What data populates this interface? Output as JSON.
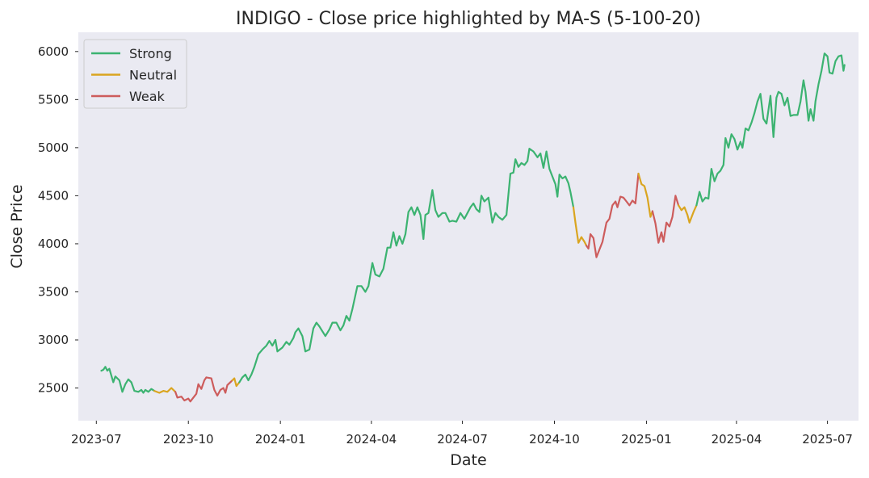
{
  "chart_data": {
    "type": "line",
    "title": "INDIGO - Close price highlighted by MA-S (5-100-20)",
    "xlabel": "Date",
    "ylabel": "Close Price",
    "grid": false,
    "legend_position": "top-left",
    "xlim": [
      "2023-06-13",
      "2025-08-01"
    ],
    "ylim": [
      2160,
      6200
    ],
    "x_ticks": [
      "2023-07-01",
      "2023-10-01",
      "2024-01-01",
      "2024-04-01",
      "2024-07-01",
      "2024-10-01",
      "2025-01-01",
      "2025-04-01",
      "2025-07-01"
    ],
    "x_tick_labels": [
      "2023-07",
      "2023-10",
      "2024-01",
      "2024-04",
      "2024-07",
      "2024-10",
      "2025-01",
      "2025-04",
      "2025-07"
    ],
    "y_ticks": [
      2500,
      3000,
      3500,
      4000,
      4500,
      5000,
      5500,
      6000
    ],
    "y_tick_labels": [
      "2500",
      "3000",
      "3500",
      "4000",
      "4500",
      "5000",
      "5500",
      "6000"
    ],
    "legend": [
      {
        "label": "Strong",
        "color": "#3cb371"
      },
      {
        "label": "Neutral",
        "color": "#daa520"
      },
      {
        "label": "Weak",
        "color": "#cd5c5c"
      }
    ],
    "segments": [
      {
        "state": "Strong",
        "points": [
          [
            "2023-07-06",
            2680
          ],
          [
            "2023-07-08",
            2690
          ],
          [
            "2023-07-10",
            2720
          ],
          [
            "2023-07-12",
            2680
          ],
          [
            "2023-07-14",
            2700
          ],
          [
            "2023-07-18",
            2560
          ],
          [
            "2023-07-20",
            2620
          ],
          [
            "2023-07-24",
            2580
          ],
          [
            "2023-07-27",
            2460
          ],
          [
            "2023-07-30",
            2540
          ],
          [
            "2023-08-02",
            2590
          ],
          [
            "2023-08-05",
            2560
          ],
          [
            "2023-08-08",
            2470
          ],
          [
            "2023-08-12",
            2460
          ],
          [
            "2023-08-15",
            2480
          ],
          [
            "2023-08-17",
            2450
          ],
          [
            "2023-08-19",
            2480
          ],
          [
            "2023-08-22",
            2460
          ],
          [
            "2023-08-25",
            2490
          ],
          [
            "2023-08-28",
            2470
          ]
        ]
      },
      {
        "state": "Neutral",
        "points": [
          [
            "2023-08-28",
            2470
          ],
          [
            "2023-09-02",
            2450
          ],
          [
            "2023-09-06",
            2470
          ],
          [
            "2023-09-10",
            2460
          ],
          [
            "2023-09-14",
            2500
          ],
          [
            "2023-09-16",
            2480
          ],
          [
            "2023-09-18",
            2460
          ]
        ]
      },
      {
        "state": "Weak",
        "points": [
          [
            "2023-09-18",
            2460
          ],
          [
            "2023-09-20",
            2400
          ],
          [
            "2023-09-24",
            2410
          ],
          [
            "2023-09-27",
            2370
          ],
          [
            "2023-10-01",
            2390
          ],
          [
            "2023-10-03",
            2360
          ],
          [
            "2023-10-06",
            2400
          ],
          [
            "2023-10-09",
            2440
          ],
          [
            "2023-10-11",
            2540
          ],
          [
            "2023-10-14",
            2490
          ],
          [
            "2023-10-17",
            2580
          ],
          [
            "2023-10-19",
            2610
          ],
          [
            "2023-10-24",
            2600
          ],
          [
            "2023-10-27",
            2480
          ],
          [
            "2023-10-30",
            2420
          ],
          [
            "2023-11-02",
            2480
          ],
          [
            "2023-11-05",
            2500
          ],
          [
            "2023-11-07",
            2450
          ],
          [
            "2023-11-09",
            2530
          ],
          [
            "2023-11-12",
            2560
          ],
          [
            "2023-11-14",
            2580
          ]
        ]
      },
      {
        "state": "Neutral",
        "points": [
          [
            "2023-11-14",
            2580
          ],
          [
            "2023-11-16",
            2600
          ],
          [
            "2023-11-18",
            2520
          ],
          [
            "2023-11-21",
            2560
          ]
        ]
      },
      {
        "state": "Strong",
        "points": [
          [
            "2023-11-21",
            2560
          ],
          [
            "2023-11-24",
            2610
          ],
          [
            "2023-11-27",
            2640
          ],
          [
            "2023-11-30",
            2580
          ],
          [
            "2023-12-03",
            2640
          ],
          [
            "2023-12-06",
            2720
          ],
          [
            "2023-12-10",
            2850
          ],
          [
            "2023-12-14",
            2900
          ],
          [
            "2023-12-18",
            2940
          ],
          [
            "2023-12-21",
            2990
          ],
          [
            "2023-12-24",
            2940
          ],
          [
            "2023-12-27",
            3000
          ],
          [
            "2023-12-29",
            2880
          ],
          [
            "2024-01-03",
            2920
          ],
          [
            "2024-01-07",
            2980
          ],
          [
            "2024-01-10",
            2950
          ],
          [
            "2024-01-14",
            3020
          ],
          [
            "2024-01-16",
            3080
          ],
          [
            "2024-01-19",
            3120
          ],
          [
            "2024-01-23",
            3040
          ],
          [
            "2024-01-26",
            2880
          ],
          [
            "2024-01-30",
            2900
          ],
          [
            "2024-02-03",
            3120
          ],
          [
            "2024-02-06",
            3180
          ],
          [
            "2024-02-09",
            3140
          ],
          [
            "2024-02-12",
            3090
          ],
          [
            "2024-02-15",
            3040
          ],
          [
            "2024-02-19",
            3110
          ],
          [
            "2024-02-22",
            3180
          ],
          [
            "2024-02-26",
            3180
          ],
          [
            "2024-03-01",
            3100
          ],
          [
            "2024-03-04",
            3150
          ],
          [
            "2024-03-07",
            3250
          ],
          [
            "2024-03-10",
            3200
          ],
          [
            "2024-03-13",
            3320
          ],
          [
            "2024-03-18",
            3560
          ],
          [
            "2024-03-22",
            3560
          ],
          [
            "2024-03-26",
            3500
          ],
          [
            "2024-03-29",
            3560
          ],
          [
            "2024-04-02",
            3800
          ],
          [
            "2024-04-05",
            3680
          ],
          [
            "2024-04-09",
            3660
          ],
          [
            "2024-04-13",
            3740
          ],
          [
            "2024-04-17",
            3960
          ],
          [
            "2024-04-20",
            3960
          ],
          [
            "2024-04-23",
            4120
          ],
          [
            "2024-04-26",
            3980
          ],
          [
            "2024-04-29",
            4080
          ],
          [
            "2024-05-02",
            4000
          ],
          [
            "2024-05-05",
            4100
          ],
          [
            "2024-05-08",
            4330
          ],
          [
            "2024-05-11",
            4380
          ],
          [
            "2024-05-14",
            4300
          ],
          [
            "2024-05-17",
            4380
          ],
          [
            "2024-05-20",
            4300
          ],
          [
            "2024-05-23",
            4050
          ],
          [
            "2024-05-25",
            4300
          ],
          [
            "2024-05-28",
            4320
          ],
          [
            "2024-06-01",
            4560
          ],
          [
            "2024-06-04",
            4350
          ],
          [
            "2024-06-07",
            4280
          ],
          [
            "2024-06-11",
            4320
          ],
          [
            "2024-06-14",
            4320
          ],
          [
            "2024-06-18",
            4230
          ],
          [
            "2024-06-21",
            4240
          ],
          [
            "2024-06-25",
            4230
          ],
          [
            "2024-06-29",
            4320
          ],
          [
            "2024-07-03",
            4260
          ],
          [
            "2024-07-06",
            4320
          ],
          [
            "2024-07-09",
            4380
          ],
          [
            "2024-07-12",
            4420
          ],
          [
            "2024-07-15",
            4360
          ],
          [
            "2024-07-18",
            4330
          ],
          [
            "2024-07-20",
            4500
          ],
          [
            "2024-07-23",
            4440
          ],
          [
            "2024-07-27",
            4480
          ],
          [
            "2024-07-31",
            4220
          ],
          [
            "2024-08-03",
            4320
          ],
          [
            "2024-08-06",
            4280
          ],
          [
            "2024-08-10",
            4250
          ],
          [
            "2024-08-14",
            4300
          ],
          [
            "2024-08-18",
            4730
          ],
          [
            "2024-08-21",
            4740
          ],
          [
            "2024-08-23",
            4880
          ],
          [
            "2024-08-26",
            4800
          ],
          [
            "2024-08-29",
            4840
          ],
          [
            "2024-09-01",
            4820
          ],
          [
            "2024-09-04",
            4860
          ],
          [
            "2024-09-06",
            4990
          ],
          [
            "2024-09-10",
            4960
          ],
          [
            "2024-09-14",
            4900
          ],
          [
            "2024-09-17",
            4940
          ],
          [
            "2024-09-20",
            4790
          ],
          [
            "2024-09-23",
            4960
          ],
          [
            "2024-09-26",
            4780
          ],
          [
            "2024-09-29",
            4700
          ],
          [
            "2024-10-02",
            4620
          ],
          [
            "2024-10-04",
            4490
          ],
          [
            "2024-10-06",
            4720
          ],
          [
            "2024-10-09",
            4680
          ],
          [
            "2024-10-12",
            4700
          ],
          [
            "2024-10-15",
            4630
          ],
          [
            "2024-10-17",
            4540
          ],
          [
            "2024-10-20",
            4380
          ]
        ]
      },
      {
        "state": "Neutral",
        "points": [
          [
            "2024-10-20",
            4380
          ],
          [
            "2024-10-22",
            4220
          ],
          [
            "2024-10-25",
            4010
          ],
          [
            "2024-10-28",
            4070
          ],
          [
            "2024-10-31",
            4020
          ],
          [
            "2024-11-02",
            3980
          ]
        ]
      },
      {
        "state": "Weak",
        "points": [
          [
            "2024-11-02",
            3980
          ],
          [
            "2024-11-04",
            3950
          ],
          [
            "2024-11-06",
            4100
          ],
          [
            "2024-11-09",
            4060
          ],
          [
            "2024-11-12",
            3860
          ],
          [
            "2024-11-15",
            3940
          ],
          [
            "2024-11-18",
            4020
          ],
          [
            "2024-11-22",
            4220
          ],
          [
            "2024-11-25",
            4260
          ],
          [
            "2024-11-28",
            4400
          ],
          [
            "2024-12-01",
            4440
          ],
          [
            "2024-12-03",
            4380
          ],
          [
            "2024-12-06",
            4490
          ],
          [
            "2024-12-09",
            4480
          ],
          [
            "2024-12-12",
            4440
          ],
          [
            "2024-12-15",
            4400
          ],
          [
            "2024-12-18",
            4450
          ],
          [
            "2024-12-21",
            4420
          ],
          [
            "2024-12-24",
            4730
          ]
        ]
      },
      {
        "state": "Neutral",
        "points": [
          [
            "2024-12-24",
            4730
          ],
          [
            "2024-12-27",
            4620
          ],
          [
            "2024-12-30",
            4600
          ],
          [
            "2025-01-02",
            4480
          ],
          [
            "2025-01-05",
            4280
          ],
          [
            "2025-01-07",
            4340
          ]
        ]
      },
      {
        "state": "Weak",
        "points": [
          [
            "2025-01-07",
            4340
          ],
          [
            "2025-01-10",
            4210
          ],
          [
            "2025-01-13",
            4010
          ],
          [
            "2025-01-16",
            4120
          ],
          [
            "2025-01-18",
            4020
          ],
          [
            "2025-01-21",
            4220
          ],
          [
            "2025-01-24",
            4180
          ],
          [
            "2025-01-27",
            4280
          ],
          [
            "2025-01-30",
            4500
          ],
          [
            "2025-02-02",
            4400
          ]
        ]
      },
      {
        "state": "Neutral",
        "points": [
          [
            "2025-02-02",
            4400
          ],
          [
            "2025-02-05",
            4350
          ],
          [
            "2025-02-08",
            4380
          ],
          [
            "2025-02-11",
            4300
          ],
          [
            "2025-02-13",
            4220
          ],
          [
            "2025-02-17",
            4330
          ],
          [
            "2025-02-20",
            4400
          ]
        ]
      },
      {
        "state": "Strong",
        "points": [
          [
            "2025-02-20",
            4400
          ],
          [
            "2025-02-23",
            4540
          ],
          [
            "2025-02-26",
            4440
          ],
          [
            "2025-03-01",
            4480
          ],
          [
            "2025-03-04",
            4470
          ],
          [
            "2025-03-07",
            4780
          ],
          [
            "2025-03-10",
            4650
          ],
          [
            "2025-03-13",
            4730
          ],
          [
            "2025-03-16",
            4760
          ],
          [
            "2025-03-19",
            4820
          ],
          [
            "2025-03-21",
            5100
          ],
          [
            "2025-03-24",
            5000
          ],
          [
            "2025-03-27",
            5140
          ],
          [
            "2025-03-30",
            5090
          ],
          [
            "2025-04-02",
            4980
          ],
          [
            "2025-04-05",
            5060
          ],
          [
            "2025-04-07",
            5000
          ],
          [
            "2025-04-10",
            5200
          ],
          [
            "2025-04-13",
            5180
          ],
          [
            "2025-04-16",
            5260
          ],
          [
            "2025-04-19",
            5360
          ],
          [
            "2025-04-22",
            5480
          ],
          [
            "2025-04-25",
            5560
          ],
          [
            "2025-04-28",
            5300
          ],
          [
            "2025-05-01",
            5250
          ],
          [
            "2025-05-05",
            5540
          ],
          [
            "2025-05-08",
            5110
          ],
          [
            "2025-05-11",
            5520
          ],
          [
            "2025-05-13",
            5580
          ],
          [
            "2025-05-16",
            5560
          ],
          [
            "2025-05-19",
            5440
          ],
          [
            "2025-05-22",
            5520
          ],
          [
            "2025-05-25",
            5330
          ],
          [
            "2025-05-28",
            5340
          ],
          [
            "2025-06-01",
            5340
          ],
          [
            "2025-06-04",
            5480
          ],
          [
            "2025-06-07",
            5700
          ],
          [
            "2025-06-09",
            5580
          ],
          [
            "2025-06-12",
            5280
          ],
          [
            "2025-06-14",
            5400
          ],
          [
            "2025-06-17",
            5280
          ],
          [
            "2025-06-19",
            5480
          ],
          [
            "2025-06-22",
            5660
          ],
          [
            "2025-06-25",
            5800
          ],
          [
            "2025-06-28",
            5980
          ],
          [
            "2025-07-01",
            5950
          ],
          [
            "2025-07-03",
            5780
          ],
          [
            "2025-07-06",
            5770
          ],
          [
            "2025-07-09",
            5900
          ],
          [
            "2025-07-12",
            5950
          ],
          [
            "2025-07-15",
            5960
          ],
          [
            "2025-07-17",
            5800
          ],
          [
            "2025-07-18",
            5860
          ]
        ]
      }
    ]
  }
}
